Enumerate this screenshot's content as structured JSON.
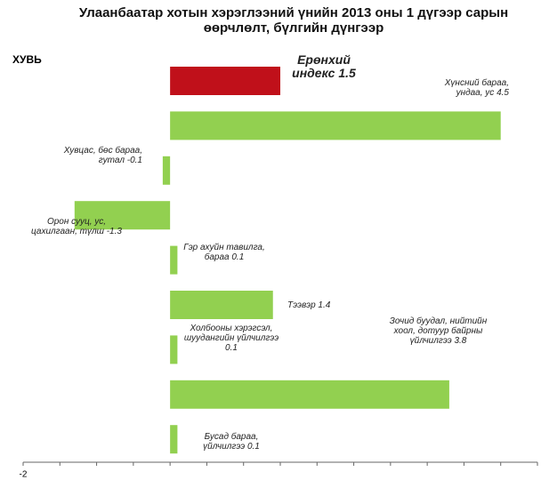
{
  "chart_data": {
    "type": "hbar",
    "title": "Улаанбаатар хотын хэрэглээний үнийн  2013 оны  1 дүгээр сарын өөрчлөлт,  бүлгийн дүнгээр",
    "y_label": "ХУВЬ",
    "categories": [
      "Ерөнхий индекс",
      "Хүнсний бараа, ундаа, ус",
      "Хувцас, бөс бараа, гутал",
      "Орон сууц, ус, цахилгаан, түлш",
      "Гэр ахуйн тавилга, бараа",
      "Тээвэр",
      "Холбооны хэрэгсэл, шуудангийн үйлчилгээ",
      "Зочид буудал, нийтийн хоол, дотуур байрны үйлчилгээ",
      "Бусад бараа, үйлчилгээ"
    ],
    "values": [
      1.5,
      4.5,
      -0.1,
      -1.3,
      0.1,
      1.4,
      0.1,
      3.8,
      0.1
    ],
    "colors": [
      "#c0101a",
      "#92d050",
      "#92d050",
      "#92d050",
      "#92d050",
      "#92d050",
      "#92d050",
      "#92d050",
      "#92d050"
    ],
    "xlim": [
      -2,
      5
    ],
    "xticks": [
      -2
    ],
    "xminor": [
      -1.5,
      -1,
      -0.5,
      0,
      0.5,
      1,
      1.5,
      2,
      2.5,
      3,
      3.5,
      4,
      4.5,
      5
    ]
  }
}
